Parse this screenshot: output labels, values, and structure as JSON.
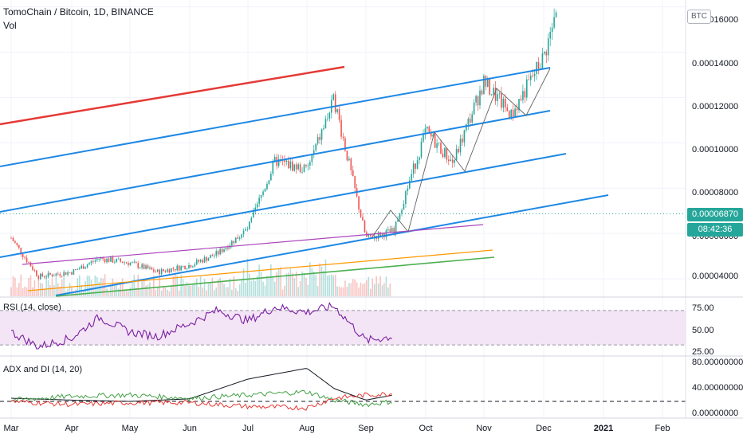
{
  "header": {
    "symbol_title": "TomoChain / Bitcoin, 1D, BINANCE",
    "volume_label": "Vol",
    "currency_badge": "BTC"
  },
  "price_axis": {
    "tick_labels": [
      "0.00016000",
      "0.00014000",
      "0.00012000",
      "0.00010000",
      "0.00008000",
      "0.00006000",
      "0.00004000"
    ],
    "last_price": "0.00006870",
    "countdown": "08:42:36",
    "last_price_color": "#26a69a",
    "countdown_color": "#26a69a"
  },
  "time_axis": {
    "labels": [
      "Mar",
      "Apr",
      "May",
      "Jun",
      "Jul",
      "Aug",
      "Sep",
      "Oct",
      "Nov",
      "Dec",
      "2021",
      "Feb"
    ]
  },
  "rsi": {
    "label": "RSI (14, close)",
    "tick_labels": [
      "75.00",
      "50.00",
      "25.00"
    ],
    "band_color": "#f3e5f5",
    "line_color": "#7b1fa2"
  },
  "adx": {
    "label": "ADX and DI (14, 20)",
    "tick_labels": [
      "80.00000000",
      "40.00000000",
      "0.00000000"
    ]
  },
  "colors": {
    "up": "#26a69a",
    "down": "#ef5350",
    "channel_blue": "#1e88e5",
    "channel_red": "#e53935",
    "purple_line": "#ab47bc",
    "orange_line": "#ff9800",
    "green_line": "#4caf50"
  },
  "chart_data": {
    "type": "candlestick",
    "title": "TomoChain / Bitcoin, 1D, BINANCE",
    "ylim": [
      3.3e-05,
      0.000163
    ],
    "y_ticks": [
      0.00016,
      0.00014,
      0.00012,
      0.0001,
      8e-05,
      6e-05,
      4e-05
    ],
    "x_ticks": [
      "Mar",
      "Apr",
      "May",
      "Jun",
      "Jul",
      "Aug",
      "Sep",
      "Oct",
      "Nov",
      "Dec",
      "2021",
      "Feb"
    ],
    "price_path": [
      {
        "x": "Mar",
        "y": 5.8e-05
      },
      {
        "x": "Mar 15",
        "y": 4.1e-05
      },
      {
        "x": "Apr",
        "y": 4.3e-05
      },
      {
        "x": "Apr 15",
        "y": 4.9e-05
      },
      {
        "x": "May",
        "y": 4.7e-05
      },
      {
        "x": "May 15",
        "y": 4.3e-05
      },
      {
        "x": "Jun",
        "y": 4.6e-05
      },
      {
        "x": "Jun 15",
        "y": 5.1e-05
      },
      {
        "x": "Jul",
        "y": 6.2e-05
      },
      {
        "x": "Jul 15",
        "y": 9.2e-05
      },
      {
        "x": "Aug",
        "y": 8.8e-05
      },
      {
        "x": "Aug 15",
        "y": 0.000119
      },
      {
        "x": "Sep",
        "y": 5.8e-05
      },
      {
        "x": "Sep 15",
        "y": 6.1e-05
      },
      {
        "x": "Oct",
        "y": 0.000105
      },
      {
        "x": "Oct 15",
        "y": 9.1e-05
      },
      {
        "x": "Nov",
        "y": 0.000127
      },
      {
        "x": "Nov 15",
        "y": 0.000112
      },
      {
        "x": "Dec",
        "y": 0.000138
      },
      {
        "x": "Dec 8",
        "y": 0.000158
      }
    ],
    "last_price": 6.87e-05,
    "rsi": {
      "name": "RSI (14, close)",
      "ylim": [
        20,
        80
      ],
      "band": [
        30,
        70
      ],
      "values": [
        {
          "x": "Mar",
          "y": 45
        },
        {
          "x": "Mar 15",
          "y": 28
        },
        {
          "x": "Apr",
          "y": 38
        },
        {
          "x": "Apr 15",
          "y": 62
        },
        {
          "x": "May",
          "y": 45
        },
        {
          "x": "May 15",
          "y": 40
        },
        {
          "x": "Jun",
          "y": 55
        },
        {
          "x": "Jun 15",
          "y": 70
        },
        {
          "x": "Jul",
          "y": 58
        },
        {
          "x": "Jul 15",
          "y": 74
        },
        {
          "x": "Aug",
          "y": 68
        },
        {
          "x": "Aug 15",
          "y": 75
        },
        {
          "x": "Sep",
          "y": 35
        },
        {
          "x": "Sep 15",
          "y": 40
        }
      ]
    },
    "adx_di": {
      "name": "ADX and DI (14, 20)",
      "ylim": [
        0,
        85
      ],
      "threshold": 20,
      "series": [
        {
          "values": [
            {
              "x": "Mar",
              "y": 25
            },
            {
              "x": "Apr",
              "y": 22
            },
            {
              "x": "May",
              "y": 20
            },
            {
              "x": "Jun",
              "y": 24
            },
            {
              "x": "Jul",
              "y": 55
            },
            {
              "x": "Aug",
              "y": 72
            },
            {
              "x": "Aug 15",
              "y": 40
            },
            {
              "x": "Sep",
              "y": 22
            },
            {
              "x": "Sep 15",
              "y": 30
            }
          ]
        },
        {
          "values": [
            {
              "x": "Mar",
              "y": 22
            },
            {
              "x": "Apr",
              "y": 28
            },
            {
              "x": "May",
              "y": 30
            },
            {
              "x": "Jun",
              "y": 25
            },
            {
              "x": "Jul",
              "y": 30
            },
            {
              "x": "Aug",
              "y": 35
            },
            {
              "x": "Aug 15",
              "y": 22
            },
            {
              "x": "Sep",
              "y": 15
            },
            {
              "x": "Sep 15",
              "y": 20
            }
          ]
        },
        {
          "values": [
            {
              "x": "Mar",
              "y": 20
            },
            {
              "x": "Apr",
              "y": 15
            },
            {
              "x": "May",
              "y": 18
            },
            {
              "x": "Jun",
              "y": 18
            },
            {
              "x": "Jul",
              "y": 12
            },
            {
              "x": "Aug",
              "y": 10
            },
            {
              "x": "Aug 15",
              "y": 25
            },
            {
              "x": "Sep",
              "y": 30
            },
            {
              "x": "Sep 15",
              "y": 32
            }
          ]
        }
      ]
    }
  }
}
